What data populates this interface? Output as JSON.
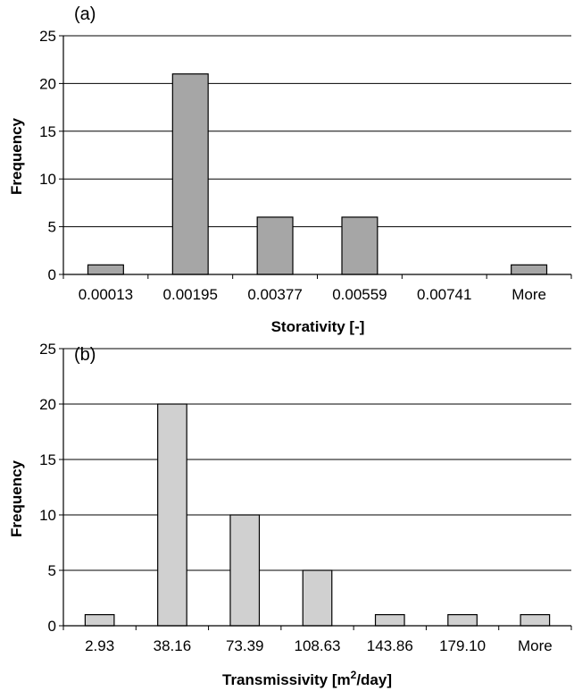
{
  "chart_data": [
    {
      "type": "bar",
      "panel_label": "(a)",
      "title": "",
      "xlabel": "Storativity [-]",
      "ylabel": "Frequency",
      "categories": [
        "0.00013",
        "0.00195",
        "0.00377",
        "0.00559",
        "0.00741",
        "More"
      ],
      "values": [
        1,
        21,
        6,
        6,
        0,
        1
      ],
      "ylim": [
        0,
        25
      ],
      "yticks": [
        0,
        5,
        10,
        15,
        20,
        25
      ],
      "grid": true,
      "bar_color": "#a6a6a6"
    },
    {
      "type": "bar",
      "panel_label": "(b)",
      "title": "",
      "xlabel": "Transmissivity [m²/day]",
      "xlabel_parts": {
        "before": "Transmissivity [m",
        "sup": "2",
        "after": "/day]"
      },
      "ylabel": "Frequency",
      "categories": [
        "2.93",
        "38.16",
        "73.39",
        "108.63",
        "143.86",
        "179.10",
        "More"
      ],
      "values": [
        1,
        20,
        10,
        5,
        1,
        1,
        1
      ],
      "ylim": [
        0,
        25
      ],
      "yticks": [
        0,
        5,
        10,
        15,
        20,
        25
      ],
      "grid": true,
      "bar_color": "#d0d0d0"
    }
  ]
}
